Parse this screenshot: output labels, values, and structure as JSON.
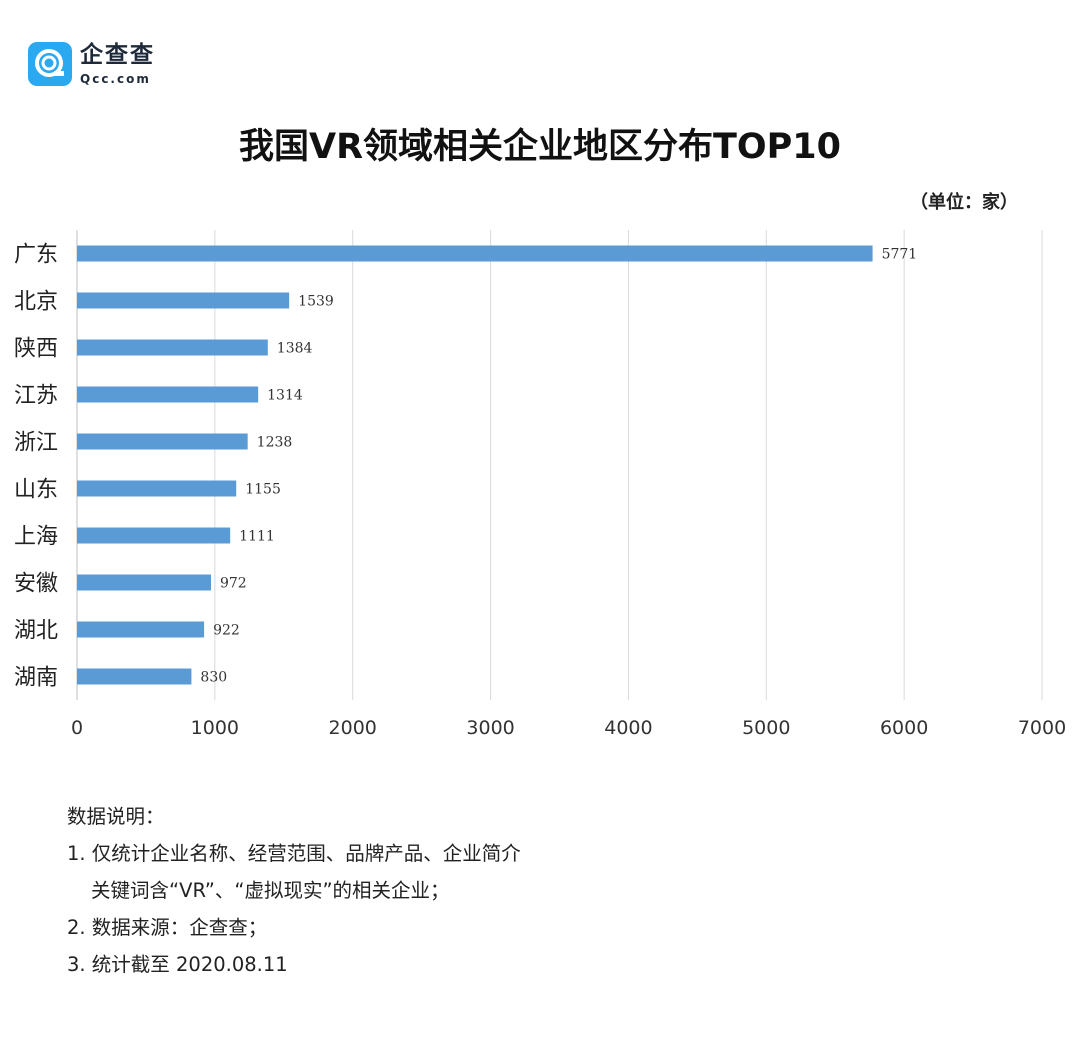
{
  "logo": {
    "name": "企查查",
    "domain": "Qcc.com",
    "icon": "qcc-q-logo-icon",
    "color": "#2aa8f0"
  },
  "unit": "（单位：家）",
  "chart_data": {
    "type": "bar",
    "orientation": "horizontal",
    "title": "我国VR领域相关企业地区分布TOP10",
    "categories": [
      "广东",
      "北京",
      "陕西",
      "江苏",
      "浙江",
      "山东",
      "上海",
      "安徽",
      "湖北",
      "湖南"
    ],
    "values": [
      5771,
      1539,
      1384,
      1314,
      1238,
      1155,
      1111,
      972,
      922,
      830
    ],
    "xlim": [
      0,
      7000
    ],
    "xticks": [
      0,
      1000,
      2000,
      3000,
      4000,
      5000,
      6000,
      7000
    ],
    "grid": true,
    "bar_color": "#5b9bd5",
    "data_labels": true
  },
  "notes": {
    "heading": "数据说明：",
    "line1": "1. 仅统计企业名称、经营范围、品牌产品、企业简介",
    "line1b": "关键词含“VR”、“虚拟现实”的相关企业；",
    "line2": "2. 数据来源：企查查；",
    "line3": "3. 统计截至 2020.08.11"
  }
}
